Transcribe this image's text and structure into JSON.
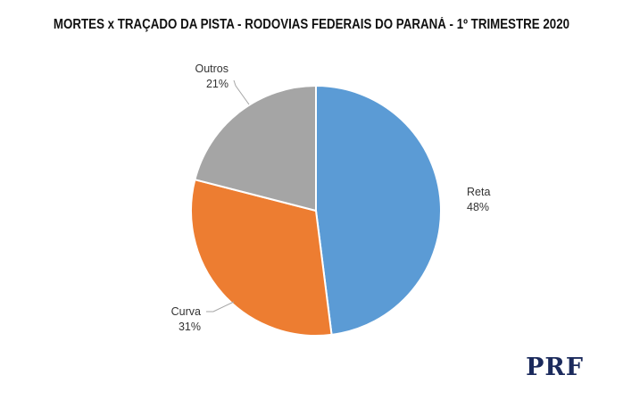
{
  "chart_data": {
    "type": "pie",
    "title": "MORTES x TRAÇADO DA PISTA - RODOVIAS FEDERAIS DO PARANÁ - 1º TRIMESTRE 2020",
    "slices": [
      {
        "name": "Reta",
        "value": 48,
        "label": "48%",
        "color": "#5b9bd5"
      },
      {
        "name": "Curva",
        "value": 31,
        "label": "31%",
        "color": "#ed7d31"
      },
      {
        "name": "Outros",
        "value": 21,
        "label": "21%",
        "color": "#a5a5a5"
      }
    ],
    "start": "12 o'clock",
    "direction": "clockwise"
  },
  "logo": {
    "text": "PRF"
  }
}
